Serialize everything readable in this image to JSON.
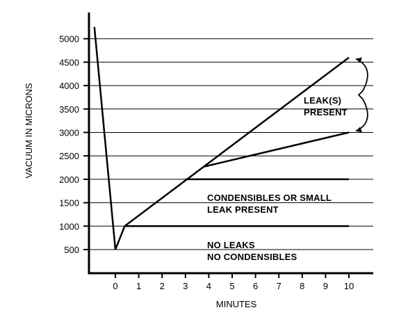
{
  "chart_data": {
    "type": "line",
    "title": "",
    "xlabel": "MINUTES",
    "ylabel": "VACUUM IN MICRONS",
    "xlim": [
      -1,
      11
    ],
    "ylim": [
      0,
      5500
    ],
    "x_ticks": [
      0,
      1,
      2,
      3,
      4,
      5,
      6,
      7,
      8,
      9,
      10
    ],
    "y_ticks": [
      500,
      1000,
      1500,
      2000,
      2500,
      3000,
      3500,
      4000,
      4500,
      5000
    ],
    "grid": "horizontal",
    "series": [
      {
        "points": [
          [
            -0.9,
            5250
          ],
          [
            0.0,
            500
          ],
          [
            0.4,
            1000
          ],
          [
            10,
            4600
          ]
        ]
      },
      {
        "points": [
          [
            0.4,
            1000
          ],
          [
            10,
            1000
          ]
        ]
      },
      {
        "points": [
          [
            3.0,
            2000
          ],
          [
            10,
            2000
          ]
        ]
      },
      {
        "points": [
          [
            3.8,
            2270
          ],
          [
            10,
            3000
          ]
        ]
      }
    ],
    "annotations": [
      {
        "lines": [
          "LEAK(S)",
          "PRESENT"
        ]
      },
      {
        "lines": [
          "CONDENSIBLES OR SMALL",
          "LEAK PRESENT"
        ]
      },
      {
        "lines": [
          "NO LEAKS",
          "NO CONDENSIBLES"
        ]
      }
    ]
  }
}
